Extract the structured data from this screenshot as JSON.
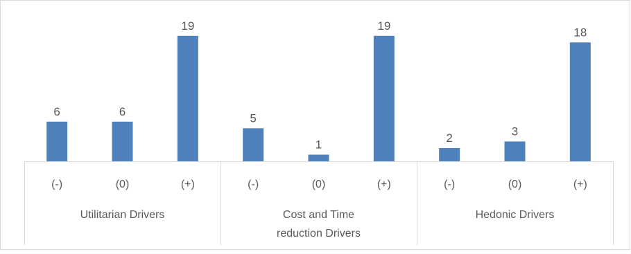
{
  "chart_data": {
    "type": "bar",
    "groups": [
      {
        "label_lines": [
          "Utilitarian Drivers"
        ],
        "categories": [
          "(-)",
          "(0)",
          "(+)"
        ],
        "values": [
          6,
          6,
          19
        ]
      },
      {
        "label_lines": [
          "Cost and Time",
          "reduction Drivers"
        ],
        "categories": [
          "(-)",
          "(0)",
          "(+)"
        ],
        "values": [
          5,
          1,
          19
        ]
      },
      {
        "label_lines": [
          "Hedonic Drivers"
        ],
        "categories": [
          "(-)",
          "(0)",
          "(+)"
        ],
        "values": [
          2,
          3,
          18
        ]
      }
    ],
    "title": "",
    "xlabel": "",
    "ylabel": "",
    "ylim": [
      0,
      19.5
    ],
    "grid": false,
    "legend": "none",
    "colors": {
      "bar": "#4f81bd",
      "axis": "#d9d9d9",
      "text": "#595959",
      "frame": "#d9d9d9"
    }
  }
}
